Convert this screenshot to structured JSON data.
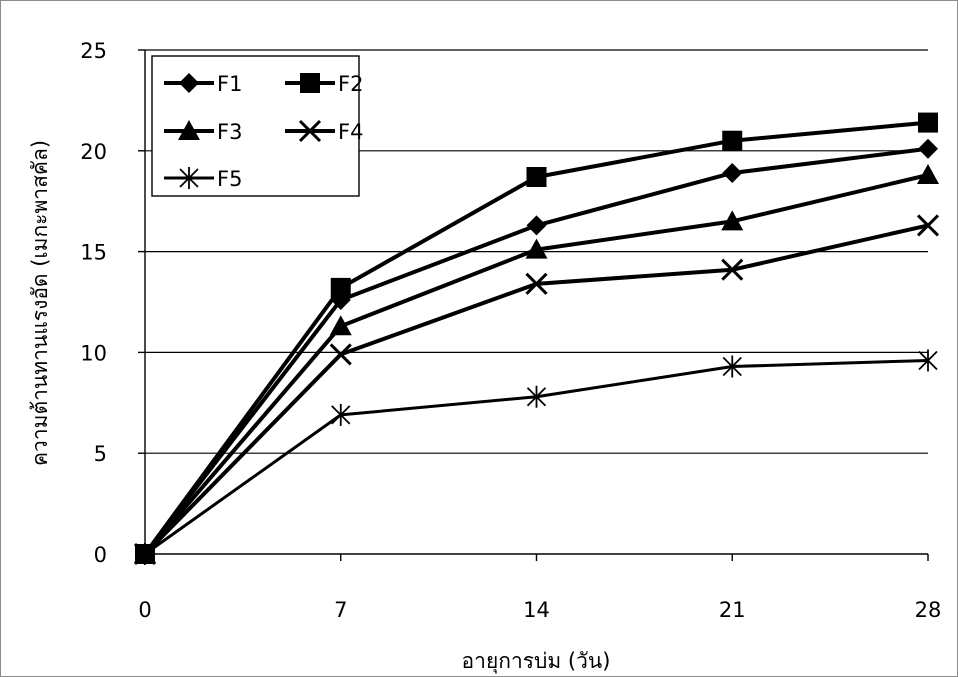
{
  "chart_data": {
    "type": "line",
    "title": "",
    "xlabel": "อายุการบ่ม (วัน)",
    "ylabel": "ความต้านทานแรงอัด (เมกะพาสคัล)",
    "x": [
      0,
      7,
      14,
      21,
      28
    ],
    "x_ticks": [
      "0",
      "7",
      "14",
      "21",
      "28"
    ],
    "y_ticks": [
      "0",
      "5",
      "10",
      "15",
      "20",
      "25"
    ],
    "xlim": [
      0,
      28
    ],
    "ylim": [
      0,
      25
    ],
    "grid": "horizontal",
    "legend_position": "top-left",
    "series": [
      {
        "name": "F1",
        "marker": "diamond",
        "values": [
          0,
          12.6,
          16.3,
          18.9,
          20.1
        ]
      },
      {
        "name": "F2",
        "marker": "square",
        "values": [
          0,
          13.2,
          18.7,
          20.5,
          21.4
        ]
      },
      {
        "name": "F3",
        "marker": "triangle",
        "values": [
          0,
          11.3,
          15.1,
          16.5,
          18.8
        ]
      },
      {
        "name": "F4",
        "marker": "x",
        "values": [
          0,
          9.9,
          13.4,
          14.1,
          16.3
        ]
      },
      {
        "name": "F5",
        "marker": "asterisk",
        "values": [
          0,
          6.9,
          7.8,
          9.3,
          9.6
        ]
      }
    ]
  }
}
